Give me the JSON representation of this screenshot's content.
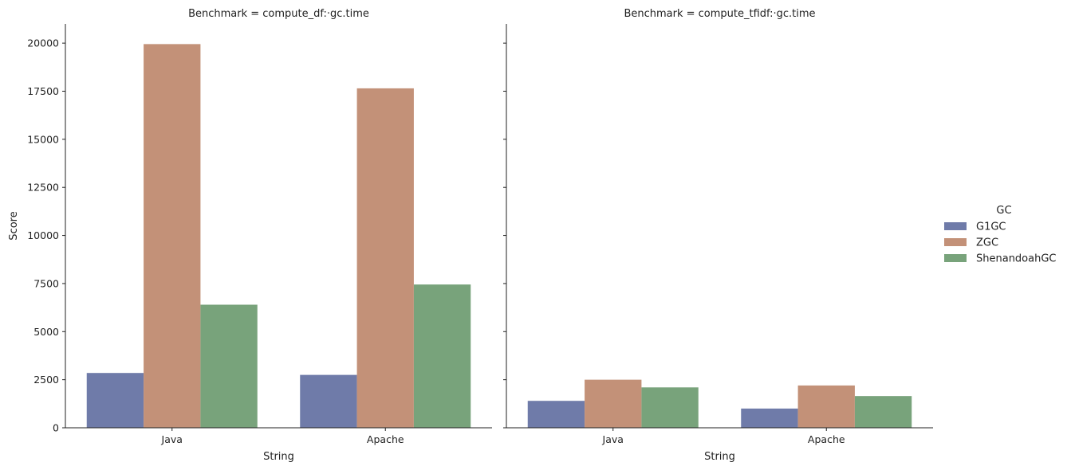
{
  "chart_data": {
    "type": "bar",
    "y_label": "Score",
    "x_label": "String",
    "categories": [
      "Java",
      "Apache"
    ],
    "ylim": [
      0,
      21000
    ],
    "yticks": [
      0,
      2500,
      5000,
      7500,
      10000,
      12500,
      15000,
      17500,
      20000
    ],
    "legend": {
      "title": "GC",
      "placement": "right",
      "entries": [
        "G1GC",
        "ZGC",
        "ShenandoahGC"
      ]
    },
    "colors": [
      "#6f7ba9",
      "#c39178",
      "#78a37b"
    ],
    "panels": [
      {
        "title": "Benchmark = compute_df:·gc.time",
        "series": [
          {
            "name": "G1GC",
            "values": [
              2850,
              2750
            ]
          },
          {
            "name": "ZGC",
            "values": [
              19950,
              17650
            ]
          },
          {
            "name": "ShenandoahGC",
            "values": [
              6400,
              7450
            ]
          }
        ]
      },
      {
        "title": "Benchmark = compute_tfidf:·gc.time",
        "series": [
          {
            "name": "G1GC",
            "values": [
              1400,
              1000
            ]
          },
          {
            "name": "ZGC",
            "values": [
              2500,
              2200
            ]
          },
          {
            "name": "ShenandoahGC",
            "values": [
              2100,
              1650
            ]
          }
        ]
      }
    ]
  }
}
